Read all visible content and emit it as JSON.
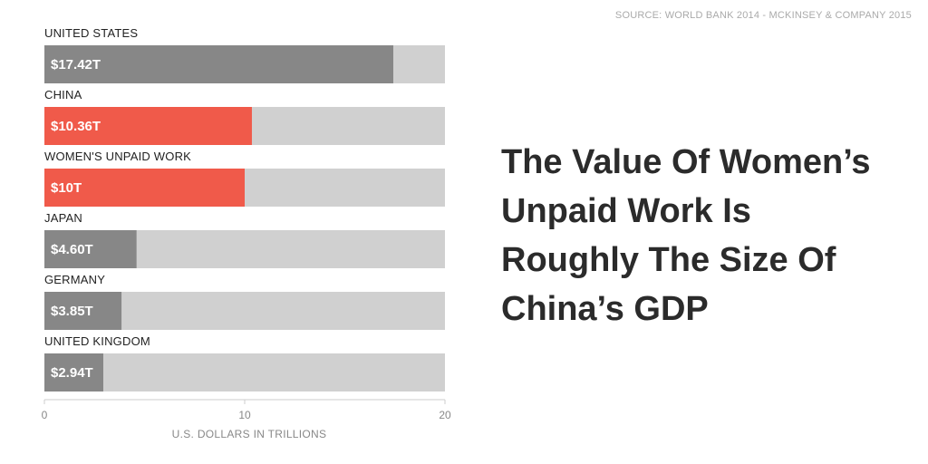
{
  "source": "SOURCE: WORLD BANK 2014 - MCKINSEY & COMPANY 2015",
  "headline": "The Value Of Women’s Unpaid Work Is Roughly The Size Of China’s GDP",
  "colors": {
    "track": "#d0d0d0",
    "gray_bar": "#878787",
    "highlight_bar": "#f05a4a",
    "axis": "#cccccc"
  },
  "chart_data": {
    "type": "bar",
    "orientation": "horizontal",
    "categories": [
      "UNITED STATES",
      "CHINA",
      "WOMEN'S UNPAID WORK",
      "JAPAN",
      "GERMANY",
      "UNITED KINGDOM"
    ],
    "values": [
      17.42,
      10.36,
      10,
      4.6,
      3.85,
      2.94
    ],
    "value_labels": [
      "$17.42T",
      "$10.36T",
      "$10T",
      "$4.60T",
      "$3.85T",
      "$2.94T"
    ],
    "highlighted": [
      false,
      true,
      true,
      false,
      false,
      false
    ],
    "xlabel": "U.S. DOLLARS IN TRILLIONS",
    "xlim": [
      0,
      20
    ],
    "xticks": [
      0,
      10,
      20
    ],
    "tick_labels": [
      "0",
      "10",
      "20"
    ],
    "grid": false
  }
}
